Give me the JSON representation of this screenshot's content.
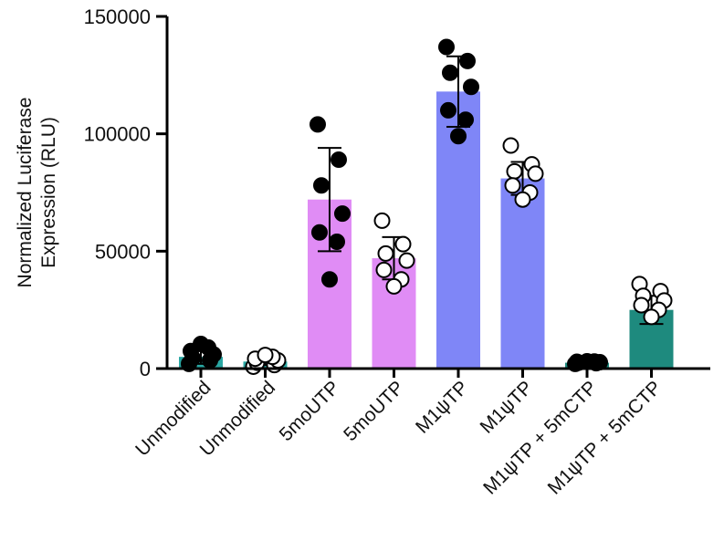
{
  "chart_data": {
    "type": "bar",
    "title": "",
    "xlabel": "",
    "ylabel_lines": [
      "Normalized Luciferase",
      "Expression (RLU)"
    ],
    "ylim": [
      0,
      150000
    ],
    "yticks": [
      0,
      50000,
      100000,
      150000
    ],
    "ytick_labels": [
      "0",
      "50000",
      "100000",
      "150000"
    ],
    "grid": false,
    "categories": [
      "Unmodified",
      "Unmodified",
      "5moUTP",
      "5moUTP",
      "M1ψTP",
      "M1ψTP",
      "M1ψTP + 5mCTP",
      "M1ψTP + 5mCTP"
    ],
    "bars": [
      {
        "mean": 5000,
        "sd": 3000,
        "color": "#2aa7a3",
        "marker": "filled",
        "points": [
          2000,
          3500,
          4500,
          6000,
          7500,
          9000,
          10500
        ]
      },
      {
        "mean": 3000,
        "sd": 1500,
        "color": "#2aa7a3",
        "marker": "open",
        "points": [
          800,
          1500,
          2500,
          3500,
          4200,
          5000,
          5800
        ]
      },
      {
        "mean": 72000,
        "sd": 22000,
        "color": "#e08cf5",
        "marker": "filled",
        "points": [
          104000,
          89000,
          78000,
          66000,
          58000,
          54000,
          38000
        ]
      },
      {
        "mean": 47000,
        "sd": 9000,
        "color": "#e08cf5",
        "marker": "open",
        "points": [
          63000,
          53000,
          49000,
          46000,
          42000,
          38000,
          35000
        ]
      },
      {
        "mean": 118000,
        "sd": 15000,
        "color": "#7f86f7",
        "marker": "filled",
        "points": [
          137000,
          131000,
          126000,
          120000,
          110000,
          106000,
          99000
        ]
      },
      {
        "mean": 81000,
        "sd": 7000,
        "color": "#7f86f7",
        "marker": "open",
        "points": [
          95000,
          87000,
          84000,
          83000,
          78000,
          75000,
          72000
        ]
      },
      {
        "mean": 2500,
        "sd": 500,
        "color": "#1e8a7e",
        "marker": "filled",
        "points": [
          2000,
          2300,
          2500,
          2700,
          2900,
          3000,
          3100
        ]
      },
      {
        "mean": 25000,
        "sd": 6000,
        "color": "#1e8a7e",
        "marker": "open",
        "points": [
          36000,
          33000,
          31000,
          29000,
          27000,
          25000,
          22000
        ]
      }
    ]
  }
}
